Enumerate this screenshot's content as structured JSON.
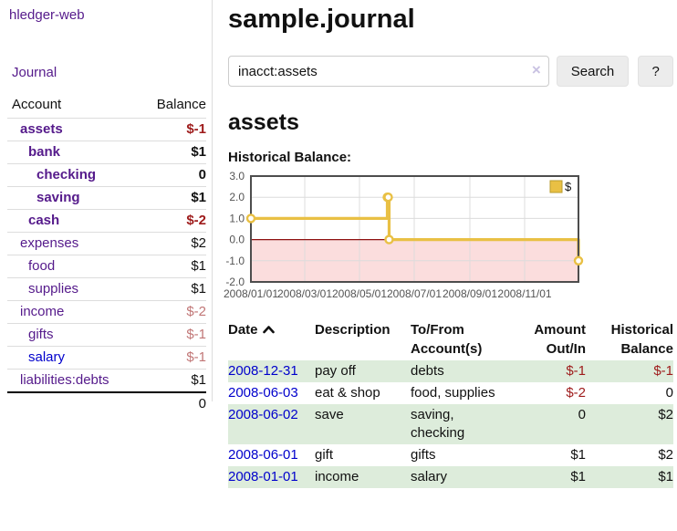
{
  "sidebar": {
    "brand": "hledger-web",
    "nav_journal": "Journal",
    "accounts_table": {
      "headers": {
        "account": "Account",
        "balance": "Balance"
      },
      "rows": [
        {
          "name": "assets",
          "depth": 1,
          "bold": true,
          "link_color": "purple",
          "balance": "$-1",
          "tone": "neg-strong"
        },
        {
          "name": "bank",
          "depth": 2,
          "bold": true,
          "link_color": "purple",
          "balance": "$1",
          "tone": "pos"
        },
        {
          "name": "checking",
          "depth": 3,
          "bold": true,
          "link_color": "purple",
          "balance": "0",
          "tone": "pos"
        },
        {
          "name": "saving",
          "depth": 3,
          "bold": true,
          "link_color": "purple",
          "balance": "$1",
          "tone": "pos"
        },
        {
          "name": "cash",
          "depth": 2,
          "bold": true,
          "link_color": "purple",
          "balance": "$-2",
          "tone": "neg-strong"
        },
        {
          "name": "expenses",
          "depth": 1,
          "bold": false,
          "link_color": "purple",
          "balance": "$2",
          "tone": "pos"
        },
        {
          "name": "food",
          "depth": 2,
          "bold": false,
          "link_color": "purple",
          "balance": "$1",
          "tone": "pos"
        },
        {
          "name": "supplies",
          "depth": 2,
          "bold": false,
          "link_color": "purple",
          "balance": "$1",
          "tone": "pos"
        },
        {
          "name": "income",
          "depth": 1,
          "bold": false,
          "link_color": "purple",
          "balance": "$-2",
          "tone": "neg-soft"
        },
        {
          "name": "gifts",
          "depth": 2,
          "bold": false,
          "link_color": "purple",
          "balance": "$-1",
          "tone": "neg-soft"
        },
        {
          "name": "salary",
          "depth": 2,
          "bold": false,
          "link_color": "blue",
          "balance": "$-1",
          "tone": "neg-soft"
        },
        {
          "name": "liabilities:debts",
          "depth": 1,
          "bold": false,
          "link_color": "purple",
          "balance": "$1",
          "tone": "pos"
        }
      ],
      "total": "0"
    }
  },
  "header": {
    "title": "sample.journal"
  },
  "search": {
    "value": "inacct:assets",
    "clear_icon": "×",
    "search_label": "Search",
    "help_label": "?"
  },
  "account_page": {
    "heading": "assets",
    "chart_label": "Historical Balance:"
  },
  "chart_data": {
    "type": "line",
    "step": true,
    "title": "Historical Balance:",
    "xlim": [
      "2008-01-01",
      "2008-12-31"
    ],
    "ylim": [
      -2,
      3
    ],
    "series": [
      {
        "name": "$",
        "color": "#e9c044",
        "points": [
          {
            "date": "2008-01-01",
            "value": 1
          },
          {
            "date": "2008-06-01",
            "value": 2
          },
          {
            "date": "2008-06-02",
            "value": 2
          },
          {
            "date": "2008-06-03",
            "value": 0
          },
          {
            "date": "2008-12-31",
            "value": -1
          }
        ]
      }
    ],
    "x_ticks": [
      {
        "date": "2008-01-01",
        "label": "2008/01/01"
      },
      {
        "date": "2008-03-01",
        "label": "2008/03/01"
      },
      {
        "date": "2008-05-01",
        "label": "2008/05/01"
      },
      {
        "date": "2008-07-01",
        "label": "2008/07/01"
      },
      {
        "date": "2008-09-01",
        "label": "2008/09/01"
      },
      {
        "date": "2008-11-01",
        "label": "2008/11/01"
      }
    ],
    "y_ticks": [
      {
        "v": 3,
        "label": "3.0"
      },
      {
        "v": 2,
        "label": "2.0"
      },
      {
        "v": 1,
        "label": "1.0"
      },
      {
        "v": 0,
        "label": "0.0"
      },
      {
        "v": -1,
        "label": "-1.0"
      },
      {
        "v": -2,
        "label": "-2.0"
      }
    ],
    "legend": {
      "label": "$",
      "position": "top-right"
    },
    "grid": true,
    "colors": {
      "negative_fill": "#fbdddd",
      "zero_line": "#8e1212",
      "grid": "#dcdcdc",
      "border": "#4d4d4d",
      "tick_text": "#545454",
      "legend_box_border": "#b89b2e",
      "marker_fill": "#ffffff"
    }
  },
  "register": {
    "headers": {
      "date": "Date",
      "description": "Description",
      "tofrom": "To/From Account(s)",
      "amount": "Amount Out/In",
      "historical": "Historical Balance"
    },
    "sort": {
      "column": "date",
      "direction": "asc"
    },
    "rows": [
      {
        "date": "2008-12-31",
        "description": "pay off",
        "tofrom": "debts",
        "amount": "$-1",
        "amount_neg": true,
        "historical": "$-1",
        "historical_neg": true
      },
      {
        "date": "2008-06-03",
        "description": "eat & shop",
        "tofrom": "food, supplies",
        "amount": "$-2",
        "amount_neg": true,
        "historical": "0",
        "historical_neg": false
      },
      {
        "date": "2008-06-02",
        "description": "save",
        "tofrom": "saving, checking",
        "amount": "0",
        "amount_neg": false,
        "historical": "$2",
        "historical_neg": false
      },
      {
        "date": "2008-06-01",
        "description": "gift",
        "tofrom": "gifts",
        "amount": "$1",
        "amount_neg": false,
        "historical": "$2",
        "historical_neg": false
      },
      {
        "date": "2008-01-01",
        "description": "income",
        "tofrom": "salary",
        "amount": "$1",
        "amount_neg": false,
        "historical": "$1",
        "historical_neg": false
      }
    ],
    "stripe_color": "#ddecdb"
  },
  "icons": {
    "clear": "x-clear-icon",
    "sort_asc": "chevron-up-icon"
  },
  "colors": {
    "link_purple": "#551a8b",
    "link_blue": "#0000cc",
    "neg_strong": "#9e1b1b",
    "neg_soft": "#c17676",
    "button_bg": "#ececec"
  }
}
